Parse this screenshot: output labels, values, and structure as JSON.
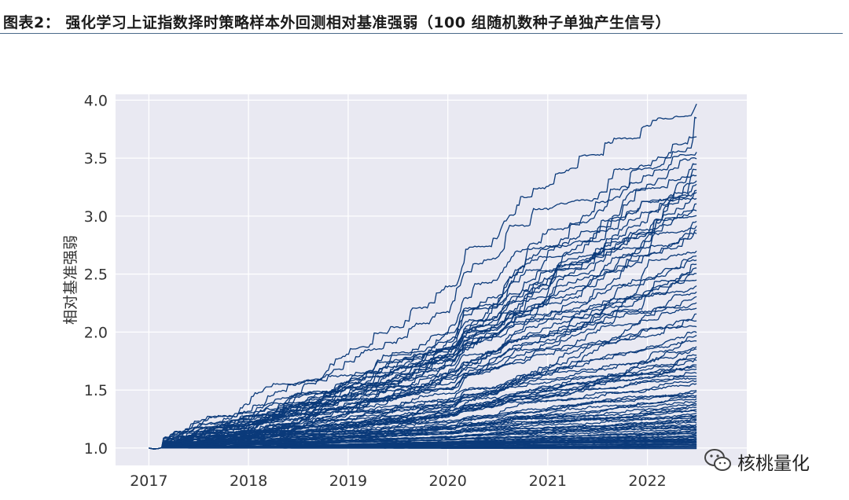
{
  "figure": {
    "title": "图表2：  强化学习上证指数择时策略样本外回测相对基准强弱（100 组随机数种子单独产生信号）"
  },
  "watermark": {
    "text": "核桃量化",
    "icon": "wechat-icon"
  },
  "chart_data": {
    "type": "line",
    "title": "",
    "xlabel": "",
    "ylabel": "相对基准强弱",
    "x_range": [
      "2017-01-01",
      "2022-06-30"
    ],
    "xlim": [
      "2016-09-01",
      "2022-12-31"
    ],
    "ylim": [
      0.85,
      4.05
    ],
    "x_ticks": [
      "2017",
      "2018",
      "2019",
      "2020",
      "2021",
      "2022"
    ],
    "y_ticks": [
      "1.0",
      "1.5",
      "2.0",
      "2.5",
      "3.0",
      "3.5",
      "4.0"
    ],
    "grid": true,
    "background": "#e9e9f2",
    "line_color": "#0b3a7a",
    "series_count": 100,
    "series_description": "100 random-seed runs, each series ends at the listed final value",
    "final_values": [
      3.97,
      3.85,
      3.68,
      3.55,
      3.5,
      3.4,
      3.35,
      3.3,
      3.27,
      3.22,
      3.2,
      3.15,
      3.1,
      3.05,
      3.0,
      2.95,
      2.92,
      2.88,
      2.85,
      2.65,
      2.62,
      2.58,
      2.55,
      2.5,
      2.45,
      2.4,
      2.35,
      2.3,
      2.25,
      2.2,
      2.1,
      2.05,
      2.0,
      1.97,
      1.92,
      1.88,
      1.85,
      1.8,
      1.76,
      1.72,
      1.68,
      1.65,
      1.62,
      1.55,
      1.5,
      1.48,
      1.45,
      1.42,
      1.4,
      1.38,
      1.35,
      1.32,
      1.3,
      1.28,
      1.26,
      1.25,
      1.22,
      1.2,
      1.19,
      1.18,
      1.17,
      1.16,
      1.15,
      1.14,
      1.13,
      1.12,
      1.11,
      1.1,
      1.09,
      1.08,
      1.08,
      1.07,
      1.07,
      1.06,
      1.06,
      1.05,
      1.05,
      1.04,
      1.04,
      1.03,
      1.03,
      1.02,
      1.02,
      1.01,
      1.01,
      1.0,
      1.0,
      0.99,
      1.24,
      1.27,
      1.33,
      1.37,
      1.44,
      1.58,
      1.6,
      1.7,
      1.78,
      2.15,
      2.7,
      3.45
    ]
  }
}
